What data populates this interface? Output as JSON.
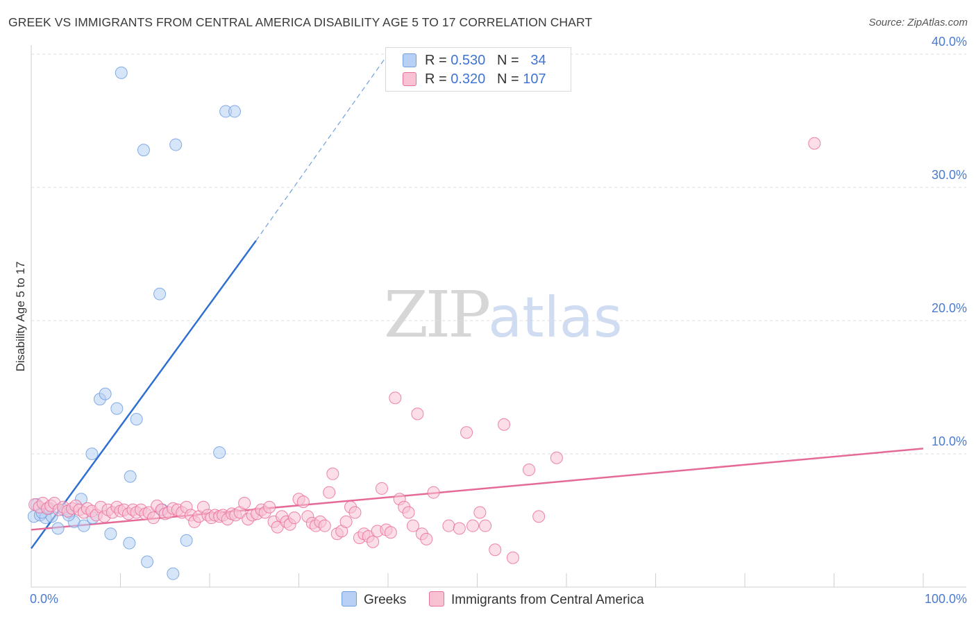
{
  "header": {
    "title": "GREEK VS IMMIGRANTS FROM CENTRAL AMERICA DISABILITY AGE 5 TO 17 CORRELATION CHART",
    "source": "Source: ZipAtlas.com"
  },
  "watermark": {
    "zip": "ZIP",
    "atlas": "atlas"
  },
  "legend_top": {
    "rows": [
      {
        "r_label": "R = ",
        "r_value": "0.530",
        "n_label": "N = ",
        "n_value": "34",
        "color": "#a9c6ef"
      },
      {
        "r_label": "R = ",
        "r_value": "0.320",
        "n_label": "N = ",
        "n_value": "107",
        "color": "#f6b5c8"
      }
    ]
  },
  "legend_bottom": {
    "items": [
      {
        "label": "Greeks",
        "color": "#a9c6ef"
      },
      {
        "label": "Immigrants from Central America",
        "color": "#f6b5c8"
      }
    ]
  },
  "chart_data": {
    "type": "scatter",
    "title": "GREEK VS IMMIGRANTS FROM CENTRAL AMERICA DISABILITY AGE 5 TO 17 CORRELATION CHART",
    "xlabel": "",
    "ylabel": "Disability Age 5 to 17",
    "xlim": [
      0,
      100
    ],
    "ylim": [
      0,
      41
    ],
    "x_tick_labels": [
      "0.0%",
      "100.0%"
    ],
    "y_ticks": [
      10,
      20,
      30,
      40
    ],
    "y_tick_labels": [
      "10.0%",
      "20.0%",
      "30.0%",
      "40.0%"
    ],
    "grid": true,
    "legend_position": "top-center",
    "series": [
      {
        "name": "Greeks",
        "color": "#6f9fe0",
        "fill": "#b7d0f3",
        "r": 0.53,
        "n": 34,
        "trend": {
          "x0": 0,
          "y0": 2.9,
          "x1": 25.2,
          "y1": 26.0,
          "dash_to_x": 40.0,
          "dash_to_y": 40.0
        },
        "points": [
          [
            0.3,
            5.3
          ],
          [
            0.6,
            6.2
          ],
          [
            1.0,
            5.4
          ],
          [
            1.6,
            5.2
          ],
          [
            2.3,
            5.3
          ],
          [
            3.0,
            4.4
          ],
          [
            3.6,
            5.8
          ],
          [
            4.3,
            5.6
          ],
          [
            4.8,
            4.9
          ],
          [
            5.6,
            6.6
          ],
          [
            5.9,
            4.6
          ],
          [
            6.9,
            5.2
          ],
          [
            6.8,
            10.0
          ],
          [
            7.7,
            14.1
          ],
          [
            8.3,
            14.5
          ],
          [
            8.9,
            4.0
          ],
          [
            9.6,
            13.4
          ],
          [
            10.1,
            38.6
          ],
          [
            11.0,
            3.3
          ],
          [
            11.1,
            8.3
          ],
          [
            11.8,
            12.6
          ],
          [
            12.6,
            32.8
          ],
          [
            13.0,
            1.9
          ],
          [
            14.4,
            22.0
          ],
          [
            14.7,
            5.8
          ],
          [
            15.9,
            1.0
          ],
          [
            16.2,
            33.2
          ],
          [
            17.4,
            3.5
          ],
          [
            21.1,
            10.1
          ],
          [
            21.8,
            35.7
          ],
          [
            22.8,
            35.7
          ],
          [
            1.2,
            5.6
          ],
          [
            2.0,
            5.9
          ],
          [
            4.2,
            5.4
          ]
        ]
      },
      {
        "name": "Immigrants from Central America",
        "color": "#ea6f9b",
        "fill": "#f8c2d3",
        "r": 0.32,
        "n": 107,
        "trend": {
          "x0": 0,
          "y0": 4.3,
          "x1": 100,
          "y1": 10.4
        },
        "points": [
          [
            0.4,
            6.2
          ],
          [
            0.9,
            6.0
          ],
          [
            1.3,
            6.3
          ],
          [
            1.8,
            5.9
          ],
          [
            2.2,
            6.1
          ],
          [
            2.6,
            6.3
          ],
          [
            3.1,
            5.8
          ],
          [
            3.6,
            6.0
          ],
          [
            4.1,
            5.7
          ],
          [
            4.6,
            5.9
          ],
          [
            5.0,
            6.1
          ],
          [
            5.4,
            5.8
          ],
          [
            5.9,
            5.6
          ],
          [
            6.3,
            5.9
          ],
          [
            6.8,
            5.7
          ],
          [
            7.3,
            5.4
          ],
          [
            7.8,
            6.0
          ],
          [
            8.2,
            5.3
          ],
          [
            8.6,
            5.8
          ],
          [
            9.1,
            5.6
          ],
          [
            9.6,
            6.0
          ],
          [
            10.0,
            5.7
          ],
          [
            10.4,
            5.8
          ],
          [
            10.9,
            5.5
          ],
          [
            11.4,
            5.8
          ],
          [
            11.8,
            5.6
          ],
          [
            12.3,
            5.8
          ],
          [
            12.8,
            5.5
          ],
          [
            13.2,
            5.6
          ],
          [
            13.7,
            5.2
          ],
          [
            14.1,
            6.1
          ],
          [
            14.6,
            5.8
          ],
          [
            15.0,
            5.5
          ],
          [
            15.4,
            5.6
          ],
          [
            15.9,
            5.9
          ],
          [
            16.4,
            5.8
          ],
          [
            16.9,
            5.6
          ],
          [
            17.4,
            6.0
          ],
          [
            17.9,
            5.4
          ],
          [
            18.3,
            4.9
          ],
          [
            18.8,
            5.3
          ],
          [
            19.3,
            6.0
          ],
          [
            19.8,
            5.4
          ],
          [
            20.2,
            5.2
          ],
          [
            20.6,
            5.4
          ],
          [
            21.1,
            5.3
          ],
          [
            21.5,
            5.4
          ],
          [
            22.0,
            5.1
          ],
          [
            22.5,
            5.5
          ],
          [
            22.9,
            5.4
          ],
          [
            23.4,
            5.6
          ],
          [
            23.9,
            6.3
          ],
          [
            24.3,
            5.1
          ],
          [
            24.8,
            5.4
          ],
          [
            25.3,
            5.5
          ],
          [
            25.8,
            5.8
          ],
          [
            26.2,
            5.6
          ],
          [
            26.7,
            6.0
          ],
          [
            27.2,
            4.9
          ],
          [
            27.6,
            4.5
          ],
          [
            28.1,
            5.3
          ],
          [
            28.6,
            4.9
          ],
          [
            29.0,
            4.7
          ],
          [
            29.5,
            5.2
          ],
          [
            30.0,
            6.6
          ],
          [
            30.5,
            6.4
          ],
          [
            31.0,
            5.3
          ],
          [
            31.5,
            4.8
          ],
          [
            31.9,
            4.6
          ],
          [
            32.4,
            4.9
          ],
          [
            32.9,
            4.6
          ],
          [
            33.4,
            7.1
          ],
          [
            33.8,
            8.5
          ],
          [
            34.3,
            4.0
          ],
          [
            34.8,
            4.2
          ],
          [
            35.3,
            4.9
          ],
          [
            35.8,
            6.0
          ],
          [
            36.3,
            5.6
          ],
          [
            36.8,
            3.7
          ],
          [
            37.3,
            4.0
          ],
          [
            37.8,
            3.8
          ],
          [
            38.3,
            3.4
          ],
          [
            38.8,
            4.2
          ],
          [
            39.3,
            7.4
          ],
          [
            39.8,
            4.3
          ],
          [
            40.3,
            4.1
          ],
          [
            40.8,
            14.2
          ],
          [
            41.3,
            6.6
          ],
          [
            41.8,
            6.0
          ],
          [
            42.3,
            5.6
          ],
          [
            42.8,
            4.6
          ],
          [
            43.3,
            13.0
          ],
          [
            43.8,
            4.0
          ],
          [
            44.3,
            3.6
          ],
          [
            45.1,
            7.1
          ],
          [
            46.8,
            4.6
          ],
          [
            48.0,
            4.4
          ],
          [
            48.8,
            11.6
          ],
          [
            49.5,
            4.6
          ],
          [
            50.3,
            5.6
          ],
          [
            50.9,
            4.6
          ],
          [
            52.0,
            2.8
          ],
          [
            53.0,
            12.2
          ],
          [
            54.0,
            2.2
          ],
          [
            55.8,
            8.8
          ],
          [
            56.9,
            5.3
          ],
          [
            58.9,
            9.7
          ],
          [
            87.8,
            33.3
          ]
        ]
      }
    ]
  }
}
